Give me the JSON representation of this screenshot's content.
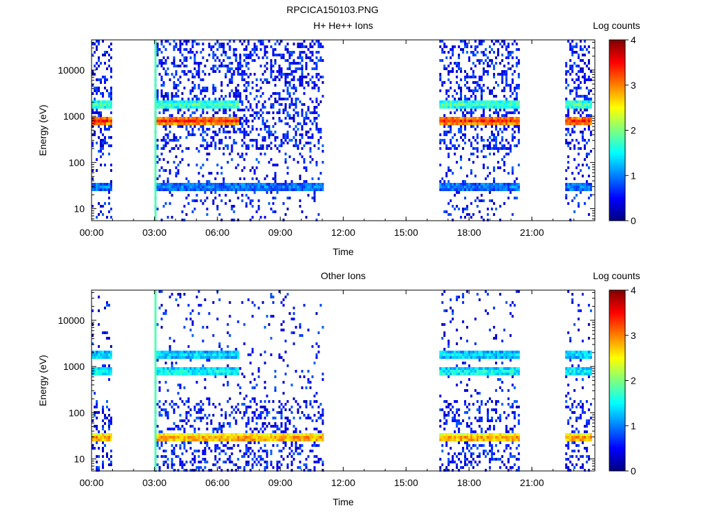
{
  "figure_title": "RPCICA150103.PNG",
  "chart_data": [
    {
      "type": "heatmap",
      "title": "H+ He++ Ions",
      "xlabel": "Time",
      "ylabel": "Energy (eV)",
      "xlim": [
        "00:00",
        "24:00"
      ],
      "ylim": [
        5.5,
        45000
      ],
      "yscale": "log",
      "x_ticks": [
        "00:00",
        "03:00",
        "06:00",
        "09:00",
        "12:00",
        "15:00",
        "18:00",
        "21:00"
      ],
      "y_ticks": [
        "10",
        "100",
        "1000",
        "10000"
      ],
      "colorbar": {
        "label": "Log counts",
        "ticks": [
          "0",
          "1",
          "2",
          "3",
          "4"
        ],
        "range": [
          0,
          4
        ]
      },
      "data_intervals": [
        [
          "00:00",
          "00:55"
        ],
        [
          "03:00",
          "11:00"
        ],
        [
          "16:35",
          "20:25"
        ],
        [
          "22:35",
          "23:50"
        ]
      ],
      "bands": [
        {
          "energy_eV": 800,
          "log_counts": 3.4,
          "intervals": [
            [
              "00:00",
              "00:55"
            ],
            [
              "03:00",
              "07:00"
            ],
            [
              "16:35",
              "20:25"
            ],
            [
              "22:35",
              "23:50"
            ]
          ]
        },
        {
          "energy_eV": 1800,
          "log_counts": 1.8,
          "intervals": [
            [
              "00:00",
              "00:55"
            ],
            [
              "03:00",
              "07:00"
            ],
            [
              "16:35",
              "20:25"
            ],
            [
              "22:35",
              "23:50"
            ]
          ]
        },
        {
          "energy_eV": 30,
          "log_counts": 1.0,
          "intervals": [
            [
              "00:00",
              "00:55"
            ],
            [
              "03:00",
              "11:00"
            ],
            [
              "16:35",
              "20:25"
            ],
            [
              "22:35",
              "23:50"
            ]
          ]
        }
      ]
    },
    {
      "type": "heatmap",
      "title": "Other Ions",
      "xlabel": "Time",
      "ylabel": "Energy (eV)",
      "xlim": [
        "00:00",
        "24:00"
      ],
      "ylim": [
        5.5,
        45000
      ],
      "yscale": "log",
      "x_ticks": [
        "00:00",
        "03:00",
        "06:00",
        "09:00",
        "12:00",
        "15:00",
        "18:00",
        "21:00"
      ],
      "y_ticks": [
        "10",
        "100",
        "1000",
        "10000"
      ],
      "colorbar": {
        "label": "Log counts",
        "ticks": [
          "0",
          "1",
          "2",
          "3",
          "4"
        ],
        "range": [
          0,
          4
        ]
      },
      "data_intervals": [
        [
          "00:00",
          "00:55"
        ],
        [
          "03:00",
          "11:00"
        ],
        [
          "16:35",
          "20:25"
        ],
        [
          "22:35",
          "23:50"
        ]
      ],
      "bands": [
        {
          "energy_eV": 28,
          "log_counts": 3.0,
          "intervals": [
            [
              "00:00",
              "00:55"
            ],
            [
              "03:00",
              "11:00"
            ],
            [
              "16:35",
              "20:25"
            ],
            [
              "22:35",
              "23:50"
            ]
          ]
        },
        {
          "energy_eV": 1800,
          "log_counts": 1.4,
          "intervals": [
            [
              "00:00",
              "00:55"
            ],
            [
              "03:00",
              "07:00"
            ],
            [
              "16:35",
              "20:25"
            ],
            [
              "22:35",
              "23:50"
            ]
          ]
        },
        {
          "energy_eV": 750,
          "log_counts": 1.6,
          "intervals": [
            [
              "00:00",
              "00:55"
            ],
            [
              "03:00",
              "07:00"
            ],
            [
              "16:35",
              "20:25"
            ],
            [
              "22:35",
              "23:50"
            ]
          ]
        }
      ]
    }
  ]
}
